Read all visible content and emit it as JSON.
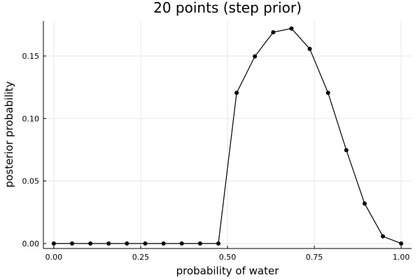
{
  "chart_data": {
    "type": "line",
    "title": "20 points (step prior)",
    "xlabel": "probability of water",
    "ylabel": "posterior probability",
    "xlim": [
      -0.03,
      1.03
    ],
    "ylim": [
      -0.004,
      0.178
    ],
    "xticks": [
      0.0,
      0.25,
      0.5,
      0.75,
      1.0
    ],
    "xtick_labels": [
      "0.00",
      "0.25",
      "0.50",
      "0.75",
      "1.00"
    ],
    "yticks": [
      0.0,
      0.05,
      0.1,
      0.15
    ],
    "ytick_labels": [
      "0.00",
      "0.05",
      "0.10",
      "0.15"
    ],
    "grid": true,
    "legend": "none",
    "series": [
      {
        "color": "#000000",
        "marker": "circle",
        "x": [
          0.0,
          0.0526,
          0.1053,
          0.1579,
          0.2105,
          0.2632,
          0.3158,
          0.3684,
          0.4211,
          0.4737,
          0.5263,
          0.5789,
          0.6316,
          0.6842,
          0.7368,
          0.7895,
          0.8421,
          0.8947,
          0.9474,
          1.0
        ],
        "y": [
          0,
          0,
          0,
          0,
          0,
          0,
          0,
          0,
          0,
          0,
          0.1205,
          0.1497,
          0.169,
          0.172,
          0.1557,
          0.1205,
          0.0747,
          0.032,
          0.0057,
          0
        ]
      }
    ]
  }
}
